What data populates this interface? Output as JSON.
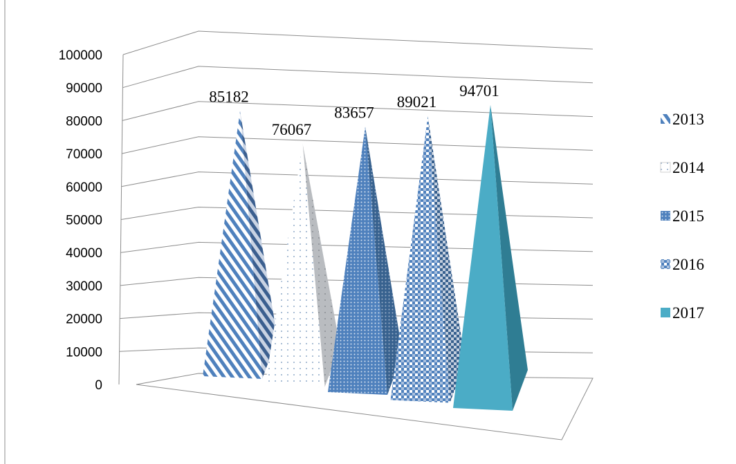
{
  "chart_data": {
    "type": "bar",
    "bar_shape": "3d-pyramid",
    "categories": [
      "2013",
      "2014",
      "2015",
      "2016",
      "2017"
    ],
    "series": [
      {
        "name": "2013",
        "value": 85182,
        "pattern": "diagonal-stripes",
        "color": "#4f81bd"
      },
      {
        "name": "2014",
        "value": 76067,
        "pattern": "sparse-dots",
        "color": "#9aa0a6"
      },
      {
        "name": "2015",
        "value": 83657,
        "pattern": "dense-dots",
        "color": "#4f81bd"
      },
      {
        "name": "2016",
        "value": 89021,
        "pattern": "checker",
        "color": "#4f81bd"
      },
      {
        "name": "2017",
        "value": 94701,
        "pattern": "solid",
        "color": "#4bacc6"
      }
    ],
    "data_labels": [
      "85182",
      "76067",
      "83657",
      "89021",
      "94701"
    ],
    "y_ticks": [
      "0",
      "10000",
      "20000",
      "30000",
      "40000",
      "50000",
      "60000",
      "70000",
      "80000",
      "90000",
      "100000"
    ],
    "ylim": [
      0,
      100000
    ],
    "grid": true,
    "legend_position": "right"
  }
}
